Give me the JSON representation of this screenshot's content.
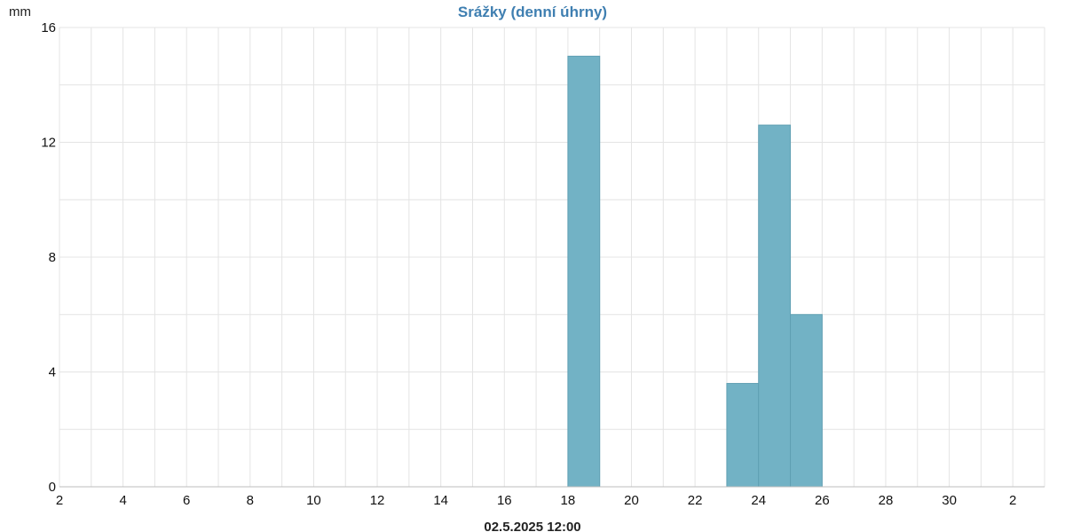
{
  "chart_data": {
    "type": "bar",
    "title": "Srážky (denní úhrny)",
    "ylabel": "mm",
    "xlabel": "02.5.2025 12:00",
    "ylim": [
      0,
      16
    ],
    "yticks": [
      0,
      4,
      8,
      12,
      16
    ],
    "xlim_days": [
      2,
      33
    ],
    "x_tick_labels": [
      "2",
      "4",
      "6",
      "8",
      "10",
      "12",
      "14",
      "16",
      "18",
      "20",
      "22",
      "24",
      "26",
      "28",
      "30",
      "2"
    ],
    "grid": true,
    "bar_color": "#72b2c5",
    "bars": [
      {
        "day": 18,
        "value": 15.0
      },
      {
        "day": 23,
        "value": 3.6
      },
      {
        "day": 24,
        "value": 12.6
      },
      {
        "day": 25,
        "value": 6.0
      }
    ]
  }
}
